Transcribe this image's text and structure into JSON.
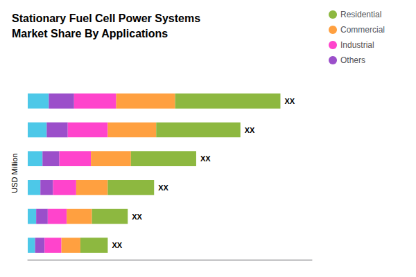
{
  "chart_data": {
    "type": "bar",
    "orientation": "horizontal",
    "stacked": true,
    "title": "Stationary Fuel Cell Power Systems\nMarket Share By Applications",
    "ylabel": "USD Million",
    "categories": [
      null,
      null,
      null,
      null,
      null,
      null
    ],
    "series": [
      {
        "color": "#4DC8E8",
        "values": [
          1.0,
          0.9,
          0.7,
          0.6,
          0.4,
          0.35
        ]
      },
      {
        "name": "Others",
        "color": "#9B4FCA",
        "values": [
          1.2,
          1.0,
          0.8,
          0.6,
          0.55,
          0.45
        ]
      },
      {
        "name": "Industrial",
        "color": "#FF44CC",
        "values": [
          2.0,
          1.9,
          1.5,
          1.1,
          0.9,
          0.8
        ]
      },
      {
        "name": "Commercial",
        "color": "#FFA040",
        "values": [
          2.8,
          2.3,
          1.9,
          1.5,
          1.2,
          0.9
        ]
      },
      {
        "name": "Residential",
        "color": "#8DB840",
        "values": [
          5.0,
          4.0,
          3.1,
          2.2,
          1.7,
          1.3
        ]
      }
    ],
    "annotations": [
      "XX",
      "XX",
      "XX",
      "XX",
      "XX",
      "XX"
    ],
    "xlim": [
      0,
      13.5
    ],
    "tick_labels": false,
    "grid": false,
    "legend": "upper right"
  }
}
